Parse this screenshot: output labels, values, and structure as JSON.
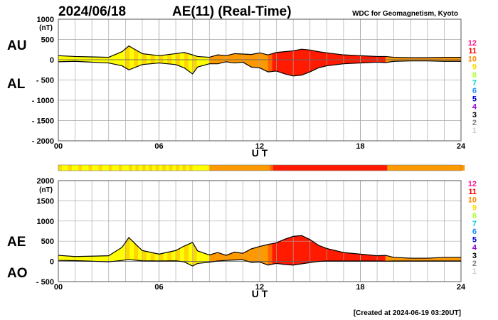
{
  "header": {
    "date": "2024/06/18",
    "title": "AE(11) (Real-Time)",
    "source": "WDC for Geomagnetism, Kyoto"
  },
  "footer": {
    "created": "[Created at 2024-06-19 03:20UT]"
  },
  "activity_scale": {
    "levels": [
      "12",
      "11",
      "10",
      "9",
      "8",
      "7",
      "6",
      "5",
      "4",
      "3",
      "2",
      "1"
    ],
    "colors": {
      "12": "#ff1493",
      "11": "#ff0000",
      "10": "#ff8c00",
      "9": "#ffd700",
      "8": "#adff2f",
      "7": "#00ced1",
      "6": "#1e90ff",
      "5": "#0000cd",
      "4": "#9400d3",
      "3": "#000000",
      "2": "#808080",
      "1": "#cccccc"
    }
  },
  "activity_timeline": {
    "bar_colors": {
      "yellow": "#ffff00",
      "gold": "#ffd700",
      "orange": "#ff9900",
      "orange_dark": "#ff6600",
      "red": "#ff1a00"
    },
    "segments": [
      {
        "start": 0,
        "end": 4.0,
        "color": "yellow"
      },
      {
        "start": 4.0,
        "end": 8.2,
        "color": "gold"
      },
      {
        "start": 8.2,
        "end": 9.0,
        "color": "yellow"
      },
      {
        "start": 9.0,
        "end": 12.5,
        "color": "orange"
      },
      {
        "start": 12.5,
        "end": 12.8,
        "color": "orange_dark"
      },
      {
        "start": 12.8,
        "end": 19.5,
        "color": "red"
      },
      {
        "start": 19.5,
        "end": 24.0,
        "color": "orange"
      }
    ]
  },
  "chart_data": [
    {
      "type": "area",
      "panel": "AU/AL",
      "labels": {
        "upper": "AU",
        "lower": "AL"
      },
      "unit": "(nT)",
      "xlabel": "U T",
      "xlim": [
        0,
        24
      ],
      "xticks": [
        "00",
        "06",
        "12",
        "18",
        "24"
      ],
      "ylim": [
        -2000,
        1000
      ],
      "yticks": [
        1000,
        500,
        0,
        -500,
        -1000,
        -1500,
        -2000
      ],
      "ytick_labels": [
        "1000",
        "500",
        "0",
        "- 500",
        "- 1000",
        "- 1500",
        "- 2000"
      ],
      "grid": true,
      "x": [
        0,
        1,
        2,
        3,
        3.8,
        4.2,
        5,
        6,
        7,
        7.5,
        8,
        8.3,
        9,
        9.5,
        10,
        10.5,
        11,
        11.5,
        12,
        12.5,
        13,
        13.5,
        14,
        14.5,
        15,
        15.5,
        16,
        17,
        18,
        19,
        19.5,
        20,
        21,
        22,
        23,
        24
      ],
      "series": [
        {
          "name": "AU",
          "values": [
            100,
            80,
            70,
            60,
            200,
            340,
            150,
            100,
            150,
            180,
            120,
            80,
            60,
            120,
            100,
            150,
            140,
            130,
            170,
            120,
            180,
            200,
            220,
            260,
            240,
            200,
            170,
            120,
            100,
            80,
            80,
            60,
            50,
            50,
            60,
            60
          ]
        },
        {
          "name": "AL",
          "values": [
            -50,
            -40,
            -60,
            -80,
            -150,
            -250,
            -120,
            -80,
            -120,
            -200,
            -350,
            -180,
            -100,
            -100,
            -50,
            -80,
            -60,
            -180,
            -200,
            -300,
            -280,
            -350,
            -400,
            -380,
            -300,
            -200,
            -150,
            -100,
            -80,
            -60,
            -70,
            -40,
            -30,
            -30,
            -40,
            -40
          ]
        }
      ]
    },
    {
      "type": "area",
      "panel": "AE/AO",
      "labels": {
        "upper": "AE",
        "lower": "AO"
      },
      "unit": "(nT)",
      "xlabel": "U T",
      "xlim": [
        0,
        24
      ],
      "xticks": [
        "00",
        "06",
        "12",
        "18",
        "24"
      ],
      "ylim": [
        -500,
        2000
      ],
      "yticks": [
        2000,
        1500,
        1000,
        500,
        0,
        -500
      ],
      "ytick_labels": [
        "2000",
        "1500",
        "1000",
        "500",
        "0",
        "- 500"
      ],
      "grid": true,
      "x": [
        0,
        1,
        2,
        3,
        3.8,
        4.2,
        5,
        6,
        7,
        7.5,
        8,
        8.3,
        9,
        9.5,
        10,
        10.5,
        11,
        11.5,
        12,
        12.5,
        13,
        13.5,
        14,
        14.5,
        15,
        15.5,
        16,
        17,
        18,
        19,
        19.5,
        20,
        21,
        22,
        23,
        24
      ],
      "series": [
        {
          "name": "AE",
          "values": [
            150,
            120,
            130,
            140,
            350,
            590,
            270,
            180,
            270,
            380,
            470,
            260,
            160,
            220,
            150,
            230,
            200,
            310,
            370,
            420,
            460,
            550,
            620,
            640,
            540,
            400,
            320,
            220,
            180,
            140,
            150,
            100,
            80,
            80,
            100,
            100
          ]
        },
        {
          "name": "AO",
          "values": [
            25,
            20,
            5,
            -10,
            25,
            45,
            15,
            10,
            15,
            -10,
            -115,
            -50,
            -20,
            10,
            25,
            35,
            40,
            -25,
            -15,
            -90,
            -50,
            -75,
            -90,
            -60,
            -30,
            0,
            10,
            10,
            10,
            10,
            5,
            10,
            10,
            10,
            10,
            10
          ]
        }
      ]
    }
  ]
}
